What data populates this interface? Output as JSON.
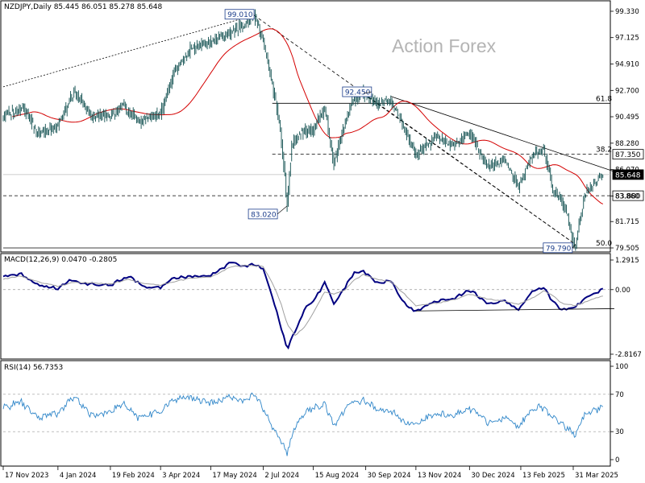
{
  "main_header": "NZDJPY,Daily  85.445 86.051 85.278 85.648",
  "watermark": "Action Forex",
  "macd_header": "MACD(12,26,9) 0.0470 -0.2805",
  "rsi_header": "RSI(14) 56.7353",
  "colors": {
    "price": "#0d4d4d",
    "ma": "#d40000",
    "macd": "#000080",
    "signal": "#a0a0a0",
    "rsi": "#2f86c9",
    "line": "#000000"
  },
  "chart_data": [
    {
      "type": "candlestick",
      "title": "NZDJPY,Daily",
      "ohlc_last": {
        "open": 85.445,
        "high": 86.051,
        "low": 85.278,
        "close": 85.648
      },
      "y_ticks": [
        "99.330",
        "97.125",
        "94.910",
        "92.700",
        "90.495",
        "88.280",
        "86.070",
        "83.860",
        "81.715",
        "79.505"
      ],
      "ylim": [
        79.505,
        99.33
      ],
      "x_ticks": [
        "17 Nov 2023",
        "4 Jan 2024",
        "19 Feb 2024",
        "3 Apr 2024",
        "17 May 2024",
        "2 Jul 2024",
        "15 Aug 2024",
        "30 Sep 2024",
        "13 Nov 2024",
        "30 Dec 2024",
        "13 Feb 2025",
        "31 Mar 2025"
      ],
      "x_anchor_days": [
        0,
        48,
        94,
        138,
        182,
        228,
        272,
        318,
        362,
        409,
        454,
        500
      ],
      "key_points": [
        {
          "day": 0,
          "value": 90.5
        },
        {
          "day": 18,
          "value": 91.3
        },
        {
          "day": 30,
          "value": 89.1
        },
        {
          "day": 48,
          "value": 89.8
        },
        {
          "day": 62,
          "value": 92.5
        },
        {
          "day": 78,
          "value": 90.6
        },
        {
          "day": 94,
          "value": 90.5
        },
        {
          "day": 105,
          "value": 91.5
        },
        {
          "day": 118,
          "value": 90.1
        },
        {
          "day": 138,
          "value": 90.7
        },
        {
          "day": 150,
          "value": 94.2
        },
        {
          "day": 165,
          "value": 96.2
        },
        {
          "day": 182,
          "value": 96.8
        },
        {
          "day": 200,
          "value": 97.6
        },
        {
          "day": 212,
          "value": 98.3
        },
        {
          "day": 220,
          "value": 99.01
        },
        {
          "day": 228,
          "value": 96.8
        },
        {
          "day": 236,
          "value": 93.2
        },
        {
          "day": 243,
          "value": 89.5
        },
        {
          "day": 247,
          "value": 85.5
        },
        {
          "day": 249,
          "value": 83.02
        },
        {
          "day": 253,
          "value": 88.0
        },
        {
          "day": 260,
          "value": 89.2
        },
        {
          "day": 272,
          "value": 89.4
        },
        {
          "day": 282,
          "value": 91.3
        },
        {
          "day": 290,
          "value": 86.5
        },
        {
          "day": 300,
          "value": 90.2
        },
        {
          "day": 307,
          "value": 91.8
        },
        {
          "day": 316,
          "value": 92.45
        },
        {
          "day": 328,
          "value": 91.6
        },
        {
          "day": 340,
          "value": 91.8
        },
        {
          "day": 362,
          "value": 87.4
        },
        {
          "day": 380,
          "value": 88.8
        },
        {
          "day": 395,
          "value": 88.1
        },
        {
          "day": 409,
          "value": 89.1
        },
        {
          "day": 425,
          "value": 86.3
        },
        {
          "day": 440,
          "value": 86.9
        },
        {
          "day": 452,
          "value": 84.6
        },
        {
          "day": 465,
          "value": 87.5
        },
        {
          "day": 474,
          "value": 87.8
        },
        {
          "day": 482,
          "value": 84.5
        },
        {
          "day": 490,
          "value": 83.4
        },
        {
          "day": 495,
          "value": 82.3
        },
        {
          "day": 500,
          "value": 80.0
        },
        {
          "day": 502,
          "value": 79.79
        },
        {
          "day": 510,
          "value": 84.0
        },
        {
          "day": 518,
          "value": 84.8
        },
        {
          "day": 526,
          "value": 85.648
        }
      ],
      "levels": [
        {
          "label": "61.8",
          "value": 91.62,
          "style": "solid"
        },
        {
          "label": "38.2",
          "value": 87.35,
          "style": "dashed"
        },
        {
          "label": "",
          "value": 85.648,
          "style": "solid-gray"
        },
        {
          "label": "",
          "value": 83.88,
          "style": "dashed"
        },
        {
          "label": "50.0",
          "value": 79.505,
          "style": "solid"
        }
      ],
      "annotations": [
        {
          "text": "99.010",
          "day": 220,
          "value": 99.01
        },
        {
          "text": "92.450",
          "day": 316,
          "value": 92.45
        },
        {
          "text": "83.020",
          "day": 249,
          "value": 83.02
        },
        {
          "text": "79.790",
          "day": 502,
          "value": 79.79
        },
        {
          "text": "87.350",
          "value": 87.35,
          "axis": true
        },
        {
          "text": "85.648",
          "value": 85.648,
          "axis": true,
          "dark": true
        },
        {
          "text": "83.880",
          "value": 83.88,
          "axis": true
        }
      ],
      "trendlines": [
        {
          "style": "dotted",
          "from": {
            "day": 0,
            "value": 93.0
          },
          "to": {
            "day": 220,
            "value": 99.0
          }
        },
        {
          "style": "dashed",
          "from": {
            "day": 220,
            "value": 99.0
          },
          "to": {
            "day": 502,
            "value": 79.8
          }
        },
        {
          "style": "dashed",
          "from": {
            "day": 316,
            "value": 92.4
          },
          "to": {
            "day": 502,
            "value": 79.8
          }
        },
        {
          "style": "solid",
          "from": {
            "day": 340,
            "value": 92.2
          },
          "to": {
            "day": 536,
            "value": 85.9
          }
        }
      ]
    },
    {
      "type": "line",
      "title": "MACD(12,26,9) 0.0470 -0.2805",
      "y_ticks": [
        "1.2915",
        "0.00",
        "-2.8167"
      ],
      "ylim": [
        -2.8167,
        1.2915
      ],
      "series": [
        {
          "key": "macd",
          "points": [
            [
              0,
              0.55
            ],
            [
              15,
              0.7
            ],
            [
              30,
              0.2
            ],
            [
              48,
              0.05
            ],
            [
              60,
              0.45
            ],
            [
              72,
              0.25
            ],
            [
              94,
              0.2
            ],
            [
              110,
              0.6
            ],
            [
              125,
              0.1
            ],
            [
              138,
              0.1
            ],
            [
              150,
              0.5
            ],
            [
              165,
              0.55
            ],
            [
              182,
              0.6
            ],
            [
              200,
              1.2
            ],
            [
              212,
              1.0
            ],
            [
              220,
              1.1
            ],
            [
              228,
              0.9
            ],
            [
              236,
              -0.3
            ],
            [
              243,
              -1.5
            ],
            [
              249,
              -2.6
            ],
            [
              256,
              -1.8
            ],
            [
              265,
              -0.8
            ],
            [
              272,
              -0.5
            ],
            [
              282,
              0.3
            ],
            [
              290,
              -0.6
            ],
            [
              300,
              0.1
            ],
            [
              307,
              0.7
            ],
            [
              316,
              0.8
            ],
            [
              328,
              0.3
            ],
            [
              340,
              0.4
            ],
            [
              352,
              -0.6
            ],
            [
              362,
              -0.95
            ],
            [
              380,
              -0.5
            ],
            [
              395,
              -0.4
            ],
            [
              409,
              0.0
            ],
            [
              425,
              -0.6
            ],
            [
              440,
              -0.5
            ],
            [
              452,
              -0.9
            ],
            [
              465,
              0.0
            ],
            [
              474,
              0.1
            ],
            [
              482,
              -0.5
            ],
            [
              490,
              -0.9
            ],
            [
              502,
              -0.75
            ],
            [
              510,
              -0.4
            ],
            [
              518,
              -0.2
            ],
            [
              526,
              0.047
            ]
          ]
        },
        {
          "key": "signal",
          "points": [
            [
              0,
              0.45
            ],
            [
              15,
              0.6
            ],
            [
              30,
              0.35
            ],
            [
              48,
              0.15
            ],
            [
              60,
              0.3
            ],
            [
              72,
              0.3
            ],
            [
              94,
              0.25
            ],
            [
              110,
              0.45
            ],
            [
              125,
              0.25
            ],
            [
              138,
              0.2
            ],
            [
              150,
              0.35
            ],
            [
              165,
              0.5
            ],
            [
              182,
              0.55
            ],
            [
              200,
              1.0
            ],
            [
              212,
              1.05
            ],
            [
              220,
              1.05
            ],
            [
              228,
              1.0
            ],
            [
              236,
              0.3
            ],
            [
              243,
              -0.5
            ],
            [
              249,
              -1.5
            ],
            [
              256,
              -2.0
            ],
            [
              265,
              -1.6
            ],
            [
              272,
              -1.0
            ],
            [
              282,
              -0.1
            ],
            [
              290,
              -0.2
            ],
            [
              300,
              0.0
            ],
            [
              307,
              0.4
            ],
            [
              316,
              0.65
            ],
            [
              328,
              0.45
            ],
            [
              340,
              0.35
            ],
            [
              352,
              -0.2
            ],
            [
              362,
              -0.7
            ],
            [
              380,
              -0.6
            ],
            [
              395,
              -0.45
            ],
            [
              409,
              -0.2
            ],
            [
              425,
              -0.4
            ],
            [
              440,
              -0.5
            ],
            [
              452,
              -0.65
            ],
            [
              465,
              -0.35
            ],
            [
              474,
              -0.05
            ],
            [
              482,
              -0.25
            ],
            [
              490,
              -0.6
            ],
            [
              502,
              -0.7
            ],
            [
              510,
              -0.55
            ],
            [
              518,
              -0.4
            ],
            [
              526,
              -0.2805
            ]
          ]
        }
      ],
      "support_line": {
        "from": {
          "day": 362,
          "value": -0.93
        },
        "to": {
          "day": 536,
          "value": -0.83
        }
      }
    },
    {
      "type": "line",
      "title": "RSI(14) 56.7353",
      "y_ticks": [
        "100",
        "70",
        "30",
        "0"
      ],
      "ylim": [
        0,
        100
      ],
      "guides": [
        70,
        30
      ],
      "series": [
        {
          "key": "rsi",
          "points": [
            [
              0,
              55
            ],
            [
              15,
              62
            ],
            [
              30,
              45
            ],
            [
              48,
              50
            ],
            [
              62,
              68
            ],
            [
              78,
              47
            ],
            [
              94,
              52
            ],
            [
              105,
              60
            ],
            [
              118,
              45
            ],
            [
              138,
              52
            ],
            [
              150,
              65
            ],
            [
              165,
              67
            ],
            [
              182,
              60
            ],
            [
              200,
              68
            ],
            [
              212,
              62
            ],
            [
              220,
              70
            ],
            [
              228,
              55
            ],
            [
              236,
              35
            ],
            [
              243,
              22
            ],
            [
              249,
              8
            ],
            [
              256,
              35
            ],
            [
              265,
              52
            ],
            [
              272,
              54
            ],
            [
              282,
              60
            ],
            [
              290,
              35
            ],
            [
              300,
              55
            ],
            [
              307,
              62
            ],
            [
              316,
              63
            ],
            [
              328,
              54
            ],
            [
              340,
              52
            ],
            [
              352,
              40
            ],
            [
              362,
              38
            ],
            [
              380,
              50
            ],
            [
              395,
              47
            ],
            [
              409,
              55
            ],
            [
              425,
              40
            ],
            [
              440,
              45
            ],
            [
              452,
              35
            ],
            [
              465,
              55
            ],
            [
              474,
              56
            ],
            [
              482,
              44
            ],
            [
              490,
              38
            ],
            [
              502,
              26
            ],
            [
              510,
              50
            ],
            [
              518,
              52
            ],
            [
              526,
              56.7353
            ]
          ]
        }
      ]
    }
  ]
}
